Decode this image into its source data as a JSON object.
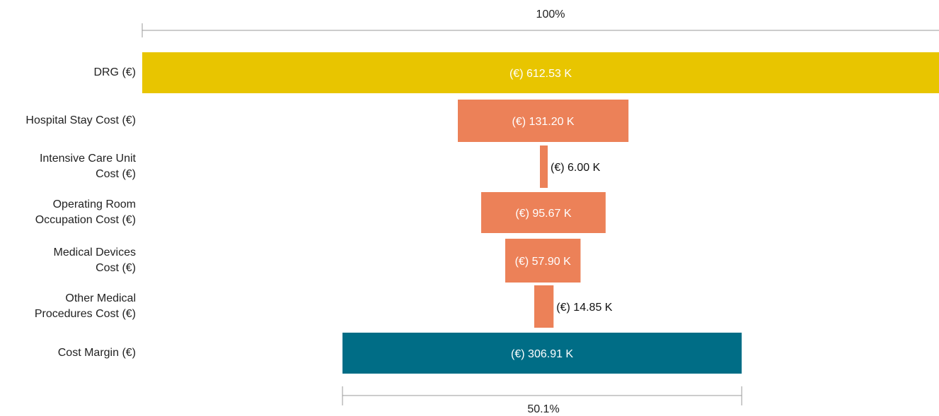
{
  "chart_data": {
    "type": "bar",
    "subtype": "funnel",
    "categories": [
      [
        "DRG (€)"
      ],
      [
        "Hospital Stay Cost (€)"
      ],
      [
        "Intensive Care Unit",
        "Cost (€)"
      ],
      [
        "Operating Room",
        "Occupation Cost (€)"
      ],
      [
        "Medical Devices",
        "Cost (€)"
      ],
      [
        "Other Medical",
        "Procedures Cost (€)"
      ],
      [
        "Cost Margin (€)"
      ]
    ],
    "values": [
      612.53,
      131.2,
      6.0,
      95.67,
      57.9,
      14.85,
      306.91
    ],
    "value_labels": [
      "(€) 612.53 K",
      "(€) 131.20 K",
      "(€) 6.00 K",
      "(€) 95.67 K",
      "(€) 57.90 K",
      "(€) 14.85 K",
      "(€) 306.91 K"
    ],
    "colors": [
      "#E8C500",
      "#EC8158",
      "#EC8158",
      "#EC8158",
      "#EC8158",
      "#EC8158",
      "#006D86"
    ],
    "top_percent_label": "100%",
    "bottom_percent_label": "50.1%"
  }
}
